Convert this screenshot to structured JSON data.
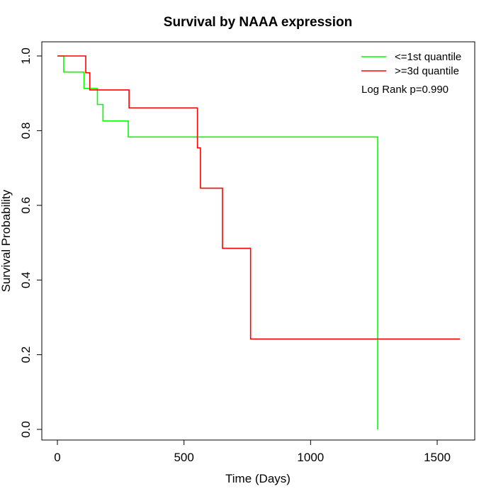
{
  "chart_data": {
    "type": "line",
    "title": "Survival by NAAA expression",
    "xlabel": "Time (Days)",
    "ylabel": "Survival Probability",
    "xlim": [
      0,
      1600
    ],
    "ylim": [
      0,
      1.0
    ],
    "x_ticks": [
      0,
      500,
      1000,
      1500
    ],
    "y_ticks": [
      0.0,
      0.2,
      0.4,
      0.6,
      0.8,
      1.0
    ],
    "x_tick_labels": [
      "0",
      "500",
      "1000",
      "1500"
    ],
    "y_tick_labels": [
      "0.0",
      "0.2",
      "0.4",
      "0.6",
      "0.8",
      "1.0"
    ],
    "grid": false,
    "legend_position": "top-right",
    "annotation": "Log Rank p=0.990",
    "series": [
      {
        "name": "<=1st quantile",
        "color": "#00ff00",
        "step": true,
        "x": [
          0,
          25,
          105,
          158,
          180,
          280,
          1265,
          1265
        ],
        "y": [
          1.0,
          0.957,
          0.913,
          0.87,
          0.826,
          0.783,
          0.783,
          0.0
        ]
      },
      {
        "name": ">=3d quantile",
        "color": "#ff0000",
        "step": true,
        "x": [
          0,
          112,
          128,
          283,
          553,
          565,
          652,
          763,
          1590
        ],
        "y": [
          1.0,
          0.955,
          0.909,
          0.861,
          0.754,
          0.646,
          0.485,
          0.242,
          0.242
        ]
      }
    ]
  }
}
